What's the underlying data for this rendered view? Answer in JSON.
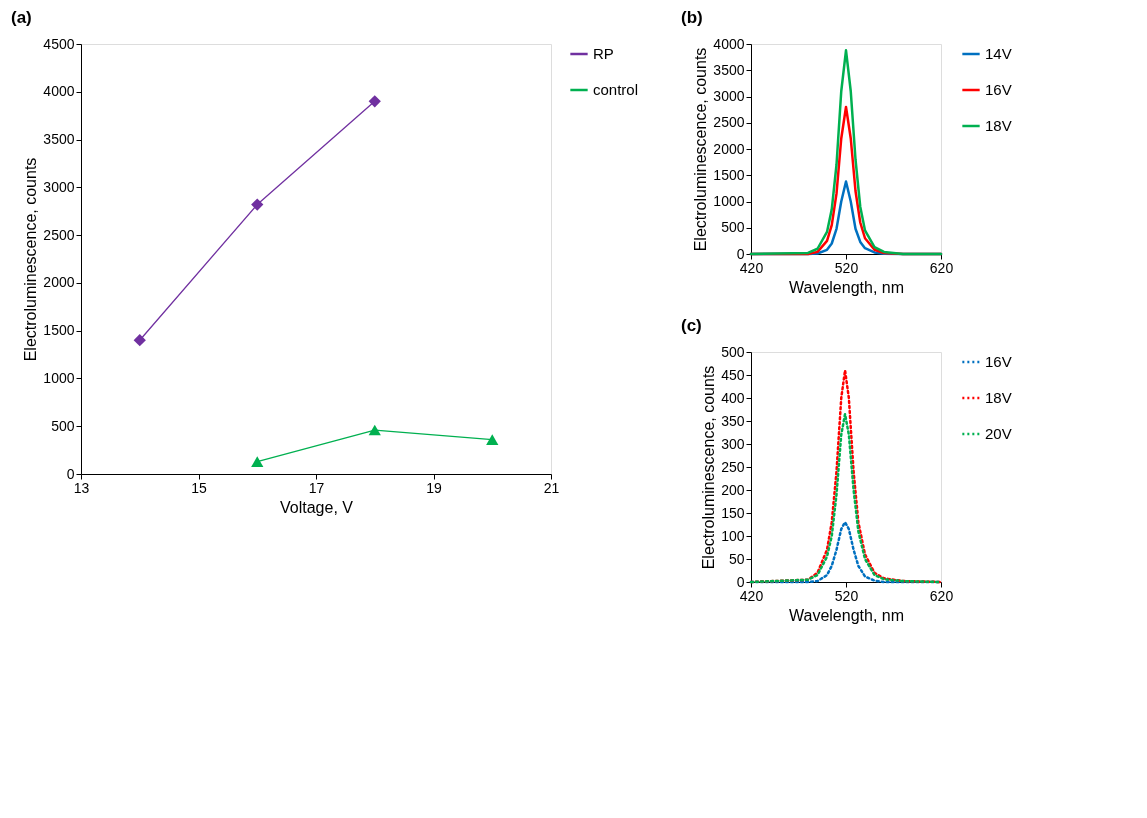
{
  "chart_data": [
    {
      "type": "line",
      "title": "(a)",
      "xlabel": "Voltage,  V",
      "ylabel": "Electroluminescence,  counts",
      "xlim": [
        13,
        21
      ],
      "xticks": [
        13,
        15,
        17,
        19,
        21
      ],
      "ylim": [
        0,
        4500
      ],
      "yticks": [
        0,
        500,
        1000,
        1500,
        2000,
        2500,
        3000,
        3500,
        4000,
        4500
      ],
      "legend": "right",
      "grid": false,
      "line_style": "solid",
      "series": [
        {
          "name": "RP",
          "color": "#7030a0",
          "marker": "diamond",
          "x": [
            14,
            16,
            18
          ],
          "values": [
            1400,
            2820,
            3900
          ]
        },
        {
          "name": "control",
          "color": "#00b050",
          "marker": "triangle",
          "x": [
            16,
            18,
            20
          ],
          "values": [
            130,
            460,
            360
          ]
        }
      ]
    },
    {
      "type": "line",
      "title": "(b)",
      "xlabel": "Wavelength, nm",
      "ylabel": "Electroluminescence, counts",
      "xlim": [
        420,
        620
      ],
      "xticks": [
        420,
        520,
        620
      ],
      "ylim": [
        0,
        4000
      ],
      "yticks": [
        0,
        500,
        1000,
        1500,
        2000,
        2500,
        3000,
        3500,
        4000
      ],
      "legend": "right",
      "grid": false,
      "marker": "none",
      "line_style": "solid",
      "series": [
        {
          "name": "14V",
          "color": "#0070c0",
          "x": [
            420,
            480,
            490,
            500,
            505,
            510,
            515,
            520,
            525,
            530,
            535,
            540,
            550,
            560,
            580,
            620
          ],
          "values": [
            0,
            0,
            10,
            80,
            200,
            480,
            1000,
            1380,
            1000,
            480,
            230,
            110,
            30,
            5,
            0,
            0
          ]
        },
        {
          "name": "16V",
          "color": "#ff0000",
          "x": [
            420,
            480,
            490,
            500,
            505,
            510,
            515,
            520,
            525,
            530,
            535,
            540,
            550,
            560,
            580,
            620
          ],
          "values": [
            0,
            0,
            40,
            250,
            550,
            1150,
            2200,
            2800,
            2200,
            1200,
            600,
            300,
            80,
            20,
            0,
            0
          ]
        },
        {
          "name": "18V",
          "color": "#00b050",
          "x": [
            420,
            480,
            490,
            500,
            505,
            510,
            515,
            520,
            525,
            530,
            535,
            540,
            550,
            560,
            580,
            620
          ],
          "values": [
            0,
            20,
            100,
            420,
            850,
            1700,
            3100,
            3880,
            3100,
            1800,
            900,
            450,
            130,
            40,
            0,
            0
          ]
        }
      ]
    },
    {
      "type": "line",
      "title": "(c)",
      "xlabel": "Wavelength,  nm",
      "ylabel": "Electroluminescence, counts",
      "xlim": [
        420,
        620
      ],
      "xticks": [
        420,
        520,
        620
      ],
      "ylim": [
        0,
        500
      ],
      "yticks": [
        0,
        50,
        100,
        150,
        200,
        250,
        300,
        350,
        400,
        450,
        500
      ],
      "legend": "right",
      "grid": false,
      "marker": "none",
      "line_style": "dotted",
      "series": [
        {
          "name": "16V",
          "color": "#0070c0",
          "x": [
            420,
            480,
            490,
            500,
            505,
            510,
            515,
            519,
            523,
            528,
            533,
            540,
            550,
            560,
            620
          ],
          "values": [
            0,
            0,
            2,
            15,
            35,
            70,
            115,
            130,
            115,
            70,
            35,
            12,
            3,
            0,
            0
          ]
        },
        {
          "name": "18V",
          "color": "#ff0000",
          "x": [
            420,
            480,
            490,
            500,
            505,
            510,
            515,
            519,
            523,
            528,
            533,
            540,
            550,
            560,
            580,
            620
          ],
          "values": [
            0,
            5,
            20,
            70,
            130,
            240,
            400,
            460,
            400,
            240,
            130,
            60,
            20,
            8,
            2,
            0
          ]
        },
        {
          "name": "20V",
          "color": "#00b050",
          "x": [
            420,
            480,
            490,
            500,
            505,
            510,
            515,
            519,
            523,
            528,
            533,
            540,
            550,
            560,
            580,
            620
          ],
          "values": [
            0,
            5,
            15,
            55,
            100,
            190,
            320,
            365,
            320,
            200,
            110,
            50,
            15,
            6,
            2,
            0
          ]
        }
      ]
    }
  ]
}
